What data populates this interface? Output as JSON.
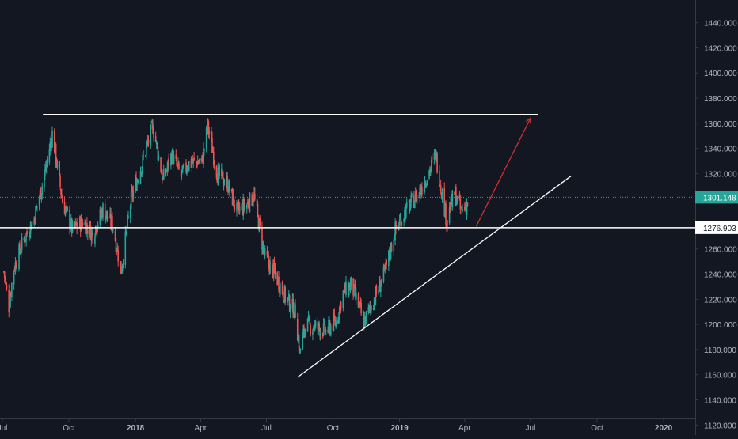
{
  "colors": {
    "background": "#131722",
    "axis_border": "#363a45",
    "tick_text": "#b2b5be",
    "bull": "#26a69a",
    "bear": "#ef5350",
    "last_price_line": "#26a69a",
    "last_price_label_bg": "#26a69a",
    "level_label_bg": "#ffffff",
    "drawing_white": "#ffffff",
    "arrow_red": "#d32f2f"
  },
  "chart_data": {
    "type": "candlestick",
    "y_axis": {
      "ylim": [
        1112,
        1458
      ],
      "ticks": [
        1120,
        1140,
        1160,
        1180,
        1200,
        1220,
        1240,
        1260,
        1280,
        1300,
        1320,
        1340,
        1360,
        1380,
        1400,
        1420,
        1440
      ],
      "tick_labels": [
        "1120.000",
        "1140.000",
        "1160.000",
        "1180.000",
        "1200.000",
        "1220.000",
        "1240.000",
        "1260.000",
        "1280.000",
        "1300.000",
        "1320.000",
        "1340.000",
        "1360.000",
        "1380.000",
        "1400.000",
        "1420.000",
        "1440.000"
      ],
      "position": "right"
    },
    "x_axis": {
      "xlim": [
        "2017-07-01",
        "2020-02-17"
      ],
      "ticks": [
        "2017-07-01",
        "2017-10-01",
        "2018-01-01",
        "2018-04-01",
        "2018-07-01",
        "2018-10-01",
        "2019-01-01",
        "2019-04-01",
        "2019-07-01",
        "2019-10-01",
        "2020-01-01"
      ],
      "tick_labels": [
        "Jul",
        "Oct",
        "2018",
        "Apr",
        "Jul",
        "Oct",
        "2019",
        "Apr",
        "Jul",
        "Oct",
        "2020"
      ],
      "bold_labels": [
        "2018",
        "2019",
        "2020"
      ]
    },
    "grid": false,
    "price_path": [
      [
        "2017-07-03",
        1242
      ],
      [
        "2017-07-10",
        1215
      ],
      [
        "2017-07-17",
        1245
      ],
      [
        "2017-07-31",
        1268
      ],
      [
        "2017-08-14",
        1285
      ],
      [
        "2017-08-28",
        1318
      ],
      [
        "2017-09-08",
        1352
      ],
      [
        "2017-09-22",
        1298
      ],
      [
        "2017-10-06",
        1275
      ],
      [
        "2017-10-20",
        1282
      ],
      [
        "2017-11-03",
        1272
      ],
      [
        "2017-11-17",
        1292
      ],
      [
        "2017-12-01",
        1278
      ],
      [
        "2017-12-12",
        1243
      ],
      [
        "2017-12-26",
        1300
      ],
      [
        "2018-01-10",
        1328
      ],
      [
        "2018-01-25",
        1358
      ],
      [
        "2018-02-08",
        1315
      ],
      [
        "2018-02-20",
        1335
      ],
      [
        "2018-03-05",
        1318
      ],
      [
        "2018-03-15",
        1328
      ],
      [
        "2018-04-03",
        1330
      ],
      [
        "2018-04-11",
        1358
      ],
      [
        "2018-04-24",
        1320
      ],
      [
        "2018-05-08",
        1312
      ],
      [
        "2018-05-21",
        1290
      ],
      [
        "2018-06-05",
        1296
      ],
      [
        "2018-06-14",
        1302
      ],
      [
        "2018-06-28",
        1255
      ],
      [
        "2018-07-13",
        1240
      ],
      [
        "2018-07-27",
        1222
      ],
      [
        "2018-08-10",
        1210
      ],
      [
        "2018-08-16",
        1178
      ],
      [
        "2018-08-24",
        1200
      ],
      [
        "2018-09-07",
        1198
      ],
      [
        "2018-09-21",
        1195
      ],
      [
        "2018-10-05",
        1202
      ],
      [
        "2018-10-15",
        1225
      ],
      [
        "2018-10-26",
        1232
      ],
      [
        "2018-11-13",
        1202
      ],
      [
        "2018-11-28",
        1222
      ],
      [
        "2018-12-12",
        1242
      ],
      [
        "2018-12-26",
        1275
      ],
      [
        "2019-01-09",
        1290
      ],
      [
        "2019-01-28",
        1305
      ],
      [
        "2019-02-08",
        1318
      ],
      [
        "2019-02-20",
        1335
      ],
      [
        "2019-03-07",
        1283
      ],
      [
        "2019-03-18",
        1305
      ],
      [
        "2019-03-27",
        1290
      ],
      [
        "2019-04-05",
        1296
      ]
    ],
    "last_price": 1301.148,
    "last_price_label": "1301.148",
    "horizontal_level": 1276.903,
    "horizontal_level_label": "1276.903",
    "drawings": {
      "resistance_line": {
        "start": [
          "2017-08-26",
          1366.8
        ],
        "end": [
          "2019-07-12",
          1366.8
        ]
      },
      "rising_trendline": {
        "start": [
          "2018-08-13",
          1158
        ],
        "end": [
          "2019-08-26",
          1318
        ]
      },
      "projection_arrow": {
        "start": [
          "2019-04-17",
          1278
        ],
        "end": [
          "2019-07-01",
          1364
        ]
      }
    }
  }
}
